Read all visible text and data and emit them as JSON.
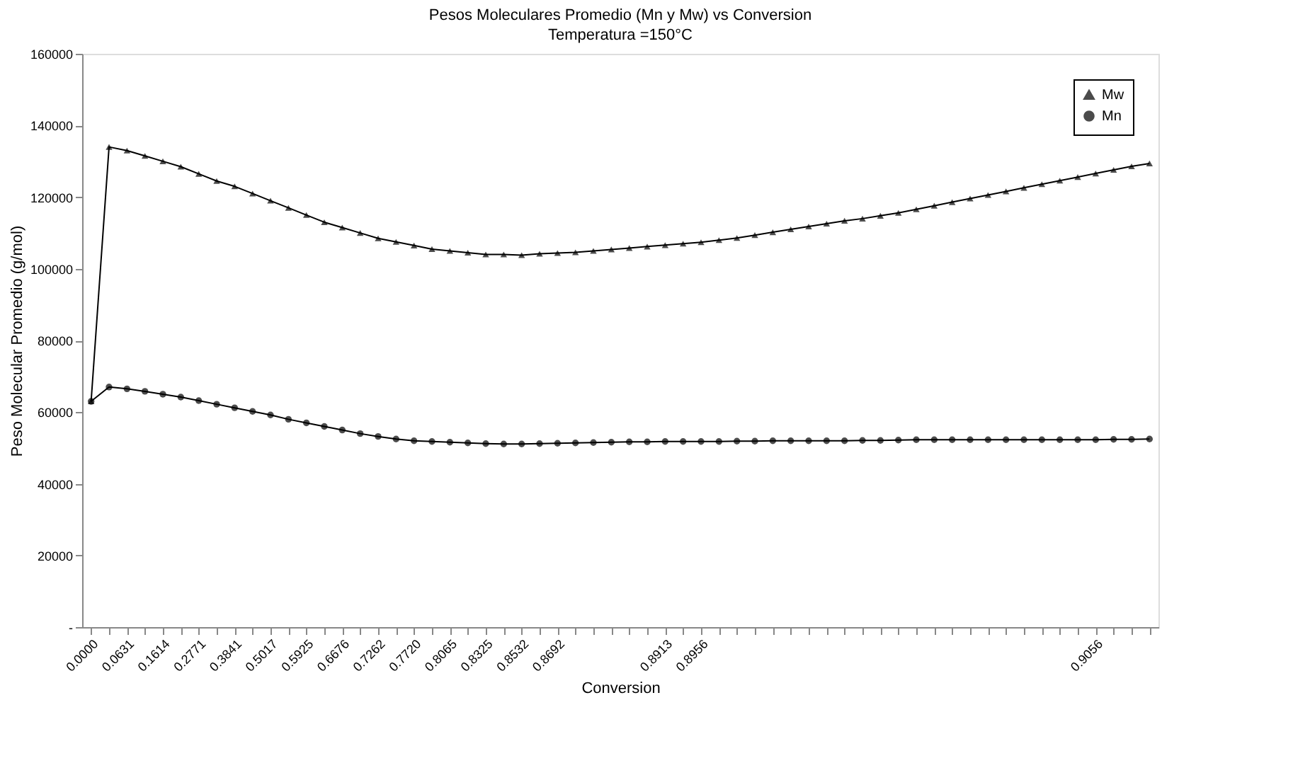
{
  "chart_data": {
    "type": "line",
    "title": "Pesos Moleculares Promedio (Mn y Mw) vs Conversion",
    "subtitle": "Temperatura =150°C",
    "xlabel": "Conversion",
    "ylabel": "Peso Molecular Promedio (g/mol)",
    "categories": [
      "0.0000",
      null,
      "0.0631",
      null,
      "0.1614",
      null,
      "0.2771",
      null,
      "0.3841",
      null,
      "0.5017",
      null,
      "0.5925",
      null,
      "0.6676",
      null,
      "0.7262",
      null,
      "0.7720",
      null,
      "0.8065",
      null,
      "0.8325",
      null,
      "0.8532",
      null,
      "0.8692",
      null,
      null,
      null,
      null,
      null,
      "0.8913",
      null,
      "0.8956",
      null,
      null,
      null,
      null,
      null,
      null,
      null,
      null,
      null,
      null,
      null,
      null,
      null,
      null,
      null,
      null,
      null,
      null,
      null,
      null,
      null,
      "0.9056",
      null,
      null,
      null
    ],
    "series": [
      {
        "name": "Mw",
        "color": "#000000",
        "marker": "triangle",
        "values": [
          63000,
          134000,
          133000,
          131500,
          130000,
          128500,
          126500,
          124500,
          123000,
          121000,
          119000,
          117000,
          115000,
          113000,
          111500,
          110000,
          108500,
          107500,
          106500,
          105500,
          105000,
          104500,
          104000,
          104000,
          103800,
          104200,
          104400,
          104600,
          105000,
          105400,
          105800,
          106200,
          106600,
          107000,
          107400,
          108000,
          108600,
          109400,
          110200,
          111000,
          111800,
          112600,
          113400,
          114000,
          114800,
          115600,
          116600,
          117600,
          118600,
          119600,
          120600,
          121600,
          122600,
          123600,
          124600,
          125600,
          126600,
          127600,
          128600,
          129400
        ]
      },
      {
        "name": "Mn",
        "color": "#000000",
        "marker": "circle",
        "values": [
          63000,
          67000,
          66500,
          65800,
          65000,
          64200,
          63200,
          62200,
          61200,
          60200,
          59200,
          58000,
          57000,
          56000,
          55000,
          54000,
          53200,
          52500,
          52000,
          51800,
          51600,
          51400,
          51200,
          51100,
          51100,
          51200,
          51300,
          51400,
          51500,
          51600,
          51700,
          51700,
          51800,
          51800,
          51800,
          51800,
          51900,
          51900,
          52000,
          52000,
          52000,
          52000,
          52000,
          52100,
          52100,
          52200,
          52300,
          52300,
          52300,
          52300,
          52300,
          52300,
          52300,
          52300,
          52300,
          52300,
          52300,
          52400,
          52400,
          52500
        ]
      }
    ],
    "ylim": [
      0,
      160000
    ],
    "yticks": [
      {
        "value": 0,
        "label": "-"
      },
      20000,
      40000,
      60000,
      80000,
      100000,
      120000,
      140000,
      160000
    ],
    "grid": false,
    "legend": "top right"
  }
}
